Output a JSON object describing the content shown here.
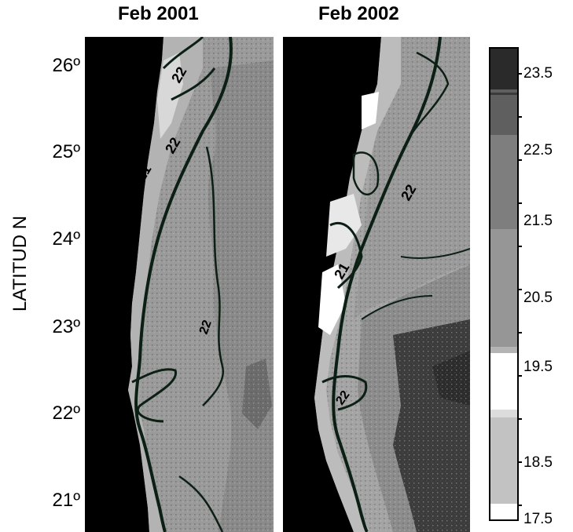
{
  "panels": [
    {
      "title": "Feb 2001"
    },
    {
      "title": "Feb 2002"
    }
  ],
  "y_axis": {
    "label": "LATITUD N",
    "ticks": [
      "26º",
      "25º",
      "24º",
      "23º",
      "22º",
      "21º"
    ]
  },
  "colorbar": {
    "labels": [
      "23.5",
      "22.5",
      "21.5",
      "20.5",
      "19.5",
      "18.5",
      "17.5"
    ],
    "colors": [
      "#2a2a2a",
      "#5f5f5f",
      "#7e7e7e",
      "#969696",
      "#b4b4b4",
      "#ffffff",
      "#c2c2c2",
      "#ffffff"
    ]
  },
  "map_colors": {
    "land": "#000000",
    "sea_light": "#a9a9a9",
    "sea_mid": "#8e8e8e",
    "sea_dark": "#3c3c3c",
    "contour": "#0c1f14"
  },
  "contour_labels": {
    "panel1": [
      "21",
      "22",
      "22",
      "22"
    ],
    "panel2": [
      "21",
      "22",
      "22"
    ]
  }
}
